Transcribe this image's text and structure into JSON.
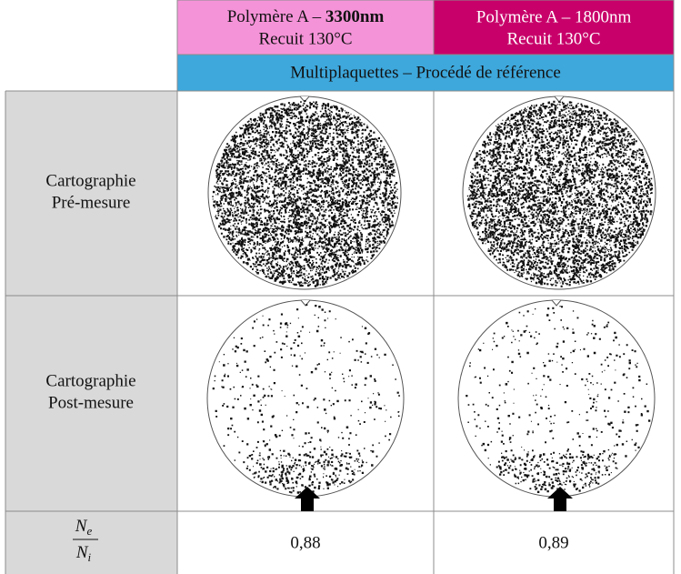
{
  "header": {
    "col1": {
      "line1": {
        "text": "Polymère A – ",
        "bold": "3300nm"
      },
      "line2": "Recuit 130°C"
    },
    "col2": {
      "line1": "Polymère A – 1800nm",
      "line2": "Recuit 130°C"
    },
    "subtitle": "Multiplaquettes – Procédé de référence"
  },
  "rows": [
    {
      "label": [
        "Cartographie",
        "Pré-mesure"
      ]
    },
    {
      "label": [
        "Cartographie",
        "Post-mesure"
      ]
    }
  ],
  "ratio": {
    "numerator": {
      "base": "N",
      "sub": "e"
    },
    "denominator": {
      "base": "N",
      "sub": "i"
    },
    "values": [
      "0,88",
      "0,89"
    ]
  }
}
